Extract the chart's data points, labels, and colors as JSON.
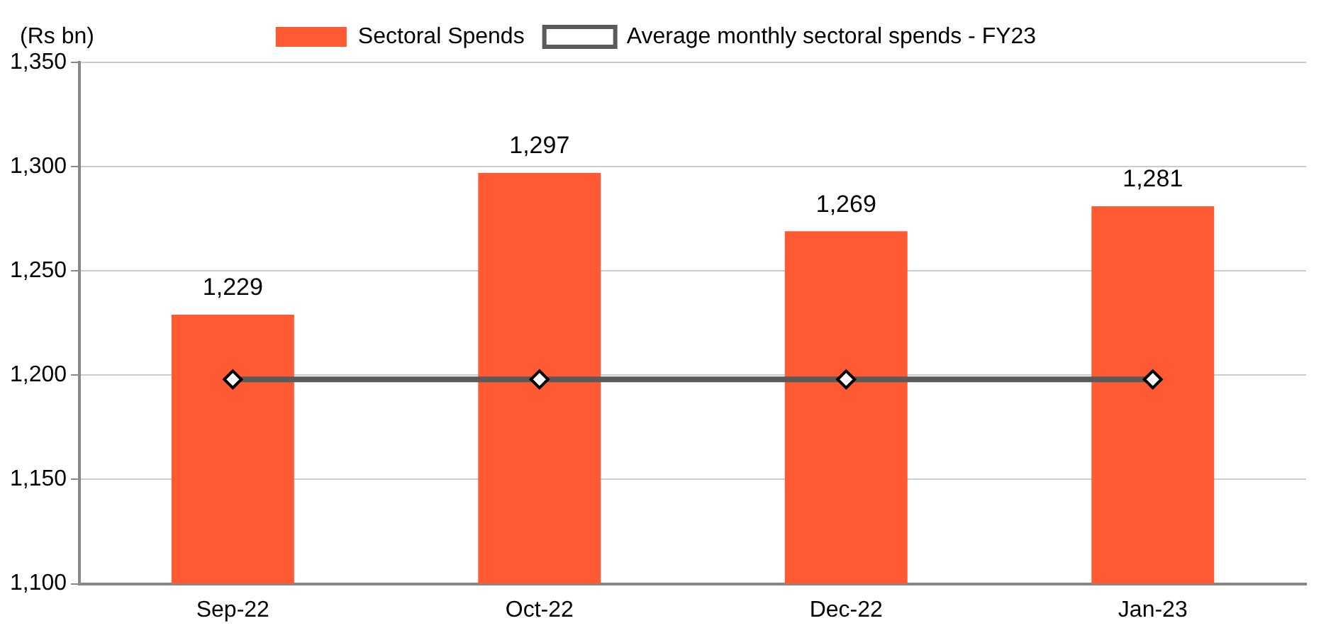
{
  "chart_data": {
    "type": "bar",
    "ylabel": "(Rs bn)",
    "categories": [
      "Sep-22",
      "Oct-22",
      "Dec-22",
      "Jan-23"
    ],
    "series": [
      {
        "name": "Sectoral Spends",
        "color": "#ff5a33",
        "values": [
          1229,
          1297,
          1269,
          1281
        ],
        "value_labels": [
          "1,229",
          "1,297",
          "1,269",
          "1,281"
        ]
      },
      {
        "name": "Average monthly sectoral spends - FY23",
        "type": "line",
        "color": "#5a5a5a",
        "values": [
          1198,
          1198,
          1198,
          1198
        ],
        "marker": "diamond",
        "line_style": "solid"
      }
    ],
    "ylim": [
      1100,
      1350
    ],
    "yticks": [
      {
        "value": 1100,
        "label": "1,100"
      },
      {
        "value": 1150,
        "label": "1,150"
      },
      {
        "value": 1200,
        "label": "1,200"
      },
      {
        "value": 1250,
        "label": "1,250"
      },
      {
        "value": 1300,
        "label": "1,300"
      },
      {
        "value": 1350,
        "label": "1,350"
      }
    ],
    "grid": "y",
    "legend": "top"
  }
}
